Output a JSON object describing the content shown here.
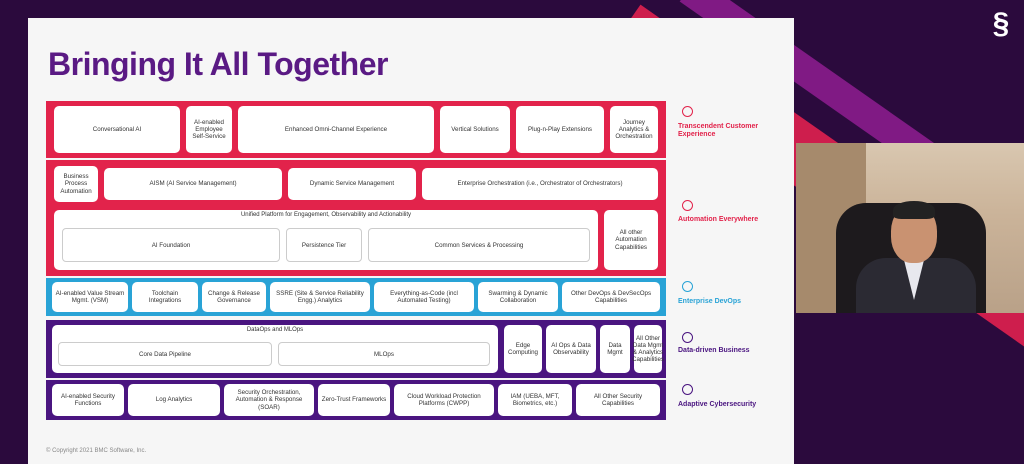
{
  "slide": {
    "title": "Bringing It All Together",
    "copyright": "© Copyright 2021 BMC Software, Inc."
  },
  "colors": {
    "red": "#e2234b",
    "blue": "#29a3d6",
    "purple": "#4a1580",
    "title": "#5a1a84"
  },
  "rows": {
    "tce": {
      "cells": [
        "Conversational AI",
        "AI-enabled Employee Self-Service",
        "Enhanced Omni-Channel Experience",
        "Vertical Solutions",
        "Plug-n-Play Extensions",
        "Journey Analytics & Orchestration"
      ]
    },
    "automation_top": {
      "cells": [
        "Business Process Automation",
        "AISM (AI Service Management)",
        "Dynamic Service Management",
        "Enterprise Orchestration (i.e., Orchestrator of Orchestrators)"
      ]
    },
    "automation_bottom": {
      "group_title": "Unified Platform for Engagement, Observability and Actionability",
      "inner": [
        "AI Foundation",
        "Persistence Tier",
        "Common Services & Processing"
      ],
      "side": "All other Automation Capabilities"
    },
    "devops": {
      "cells": [
        "AI-enabled Value Stream Mgmt. (VSM)",
        "Toolchain Integrations",
        "Change & Release Governance",
        "SSRE (Site & Service Reliability Engg.) Analytics",
        "Everything-as-Code (incl Automated Testing)",
        "Swarming & Dynamic Collaboration",
        "Other DevOps & DevSecOps Capabilities"
      ]
    },
    "data": {
      "group_title": "DataOps and MLOps",
      "inner": [
        "Core Data Pipeline",
        "MLOps"
      ],
      "cells": [
        "Edge Computing",
        "AI Ops & Data Observability",
        "Data Mgmt",
        "All Other Data Mgmt & Analytics Capabilities"
      ]
    },
    "security": {
      "cells": [
        "AI-enabled Security Functions",
        "Log Analytics",
        "Security Orchestration, Automation & Response (SOAR)",
        "Zero-Trust Frameworks",
        "Cloud Workload Protection Platforms (CWPP)",
        "IAM (UEBA, MFT, Biometrics, etc.)",
        "All Other Security Capabilities"
      ]
    }
  },
  "side_labels": [
    {
      "text": "Transcendent Customer Experience",
      "color": "#e2234b"
    },
    {
      "text": "Automation Everywhere",
      "color": "#e2234b"
    },
    {
      "text": "Enterprise DevOps",
      "color": "#29a3d6"
    },
    {
      "text": "Data-driven Business",
      "color": "#4a1580"
    },
    {
      "text": "Adaptive Cybersecurity",
      "color": "#4a1580"
    }
  ]
}
